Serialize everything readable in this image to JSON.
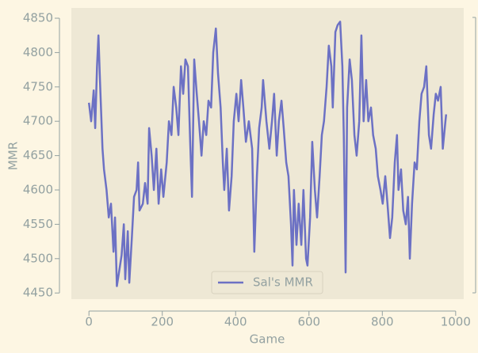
{
  "chart_data": {
    "type": "line",
    "x_label": "Game",
    "y_label": "MMR",
    "x": [
      0,
      6,
      13,
      17,
      22,
      26,
      30,
      37,
      41,
      48,
      54,
      60,
      67,
      71,
      76,
      82,
      89,
      95,
      99,
      106,
      110,
      117,
      123,
      130,
      134,
      138,
      147,
      153,
      160,
      164,
      171,
      177,
      184,
      190,
      197,
      203,
      212,
      218,
      225,
      231,
      238,
      244,
      251,
      257,
      263,
      270,
      276,
      281,
      287,
      294,
      300,
      307,
      313,
      320,
      326,
      333,
      339,
      346,
      352,
      359,
      365,
      369,
      376,
      382,
      389,
      395,
      402,
      408,
      415,
      421,
      428,
      436,
      445,
      451,
      458,
      464,
      471,
      475,
      484,
      492,
      499,
      505,
      512,
      518,
      525,
      531,
      538,
      544,
      551,
      555,
      559,
      566,
      572,
      579,
      585,
      592,
      596,
      603,
      609,
      616,
      622,
      629,
      635,
      641,
      648,
      654,
      661,
      665,
      672,
      678,
      685,
      691,
      695,
      700,
      704,
      711,
      717,
      724,
      730,
      737,
      743,
      749,
      756,
      762,
      769,
      775,
      782,
      788,
      795,
      801,
      808,
      814,
      821,
      827,
      834,
      840,
      844,
      851,
      857,
      864,
      870,
      875,
      881,
      888,
      894,
      901,
      907,
      914,
      920,
      927,
      933,
      940,
      946,
      952,
      959,
      965,
      972,
      974
    ],
    "series": [
      {
        "name": "Sal's MMR",
        "color": "#6c71c4",
        "values": [
          4727,
          4700,
          4745,
          4690,
          4780,
          4825,
          4760,
          4660,
          4630,
          4600,
          4560,
          4580,
          4510,
          4560,
          4460,
          4480,
          4505,
          4550,
          4470,
          4540,
          4465,
          4530,
          4590,
          4600,
          4640,
          4570,
          4580,
          4610,
          4580,
          4690,
          4650,
          4600,
          4660,
          4580,
          4630,
          4590,
          4640,
          4700,
          4680,
          4750,
          4720,
          4680,
          4780,
          4740,
          4790,
          4780,
          4670,
          4590,
          4790,
          4740,
          4700,
          4650,
          4700,
          4680,
          4730,
          4720,
          4800,
          4835,
          4770,
          4720,
          4640,
          4600,
          4660,
          4570,
          4620,
          4700,
          4740,
          4700,
          4760,
          4720,
          4670,
          4700,
          4660,
          4510,
          4620,
          4690,
          4720,
          4760,
          4700,
          4660,
          4700,
          4740,
          4650,
          4700,
          4730,
          4690,
          4640,
          4620,
          4550,
          4490,
          4600,
          4520,
          4580,
          4520,
          4600,
          4500,
          4490,
          4560,
          4670,
          4600,
          4560,
          4620,
          4680,
          4700,
          4750,
          4810,
          4780,
          4720,
          4830,
          4840,
          4845,
          4780,
          4680,
          4480,
          4720,
          4790,
          4760,
          4680,
          4650,
          4700,
          4825,
          4700,
          4760,
          4700,
          4720,
          4680,
          4660,
          4620,
          4600,
          4580,
          4620,
          4580,
          4530,
          4560,
          4640,
          4680,
          4600,
          4630,
          4570,
          4550,
          4590,
          4500,
          4580,
          4640,
          4630,
          4700,
          4740,
          4750,
          4780,
          4680,
          4660,
          4710,
          4740,
          4730,
          4750,
          4660,
          4700,
          4710
        ]
      }
    ],
    "xlim": [
      -48,
      1022
    ],
    "ylim": [
      4441,
      4865
    ],
    "xticks": [
      0,
      200,
      400,
      600,
      800,
      1000
    ],
    "yticks": [
      4450,
      4500,
      4550,
      4600,
      4650,
      4700,
      4750,
      4800,
      4850
    ],
    "legend": "lower center"
  }
}
